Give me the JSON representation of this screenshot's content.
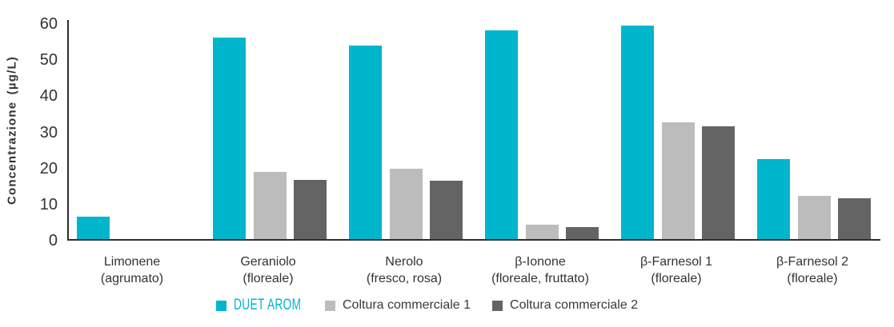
{
  "chart_data": {
    "type": "bar",
    "title": "",
    "xlabel": "",
    "ylabel": "Concentrazione (µg/L)",
    "ylim": [
      0,
      60
    ],
    "yticks": [
      0,
      10,
      20,
      30,
      40,
      50,
      60
    ],
    "grid": false,
    "legend_position": "bottom",
    "categories": [
      "Limonene",
      "Geraniolo",
      "Nerolo",
      "β-Ionone",
      "β-Farnesol 1",
      "β-Farnesol 2"
    ],
    "category_descriptors": [
      "(agrumato)",
      "(floreale)",
      "(fresco, rosa)",
      "(floreale, fruttato)",
      "(floreale)",
      "(floreale)"
    ],
    "series": [
      {
        "name": "DUET AROM",
        "color": "#00b6cd",
        "values": [
          6.3,
          55.8,
          53.6,
          57.8,
          59.2,
          22.2
        ]
      },
      {
        "name": "Coltura commerciale 1",
        "color": "#bcbcbc",
        "values": [
          0,
          18.6,
          19.4,
          4.0,
          32.4,
          12.0
        ]
      },
      {
        "name": "Coltura commerciale 2",
        "color": "#646464",
        "values": [
          0,
          16.4,
          16.2,
          3.4,
          31.2,
          11.2
        ]
      }
    ]
  },
  "colors": {
    "axis": "#2e2e2e",
    "text": "#333333",
    "background": "#ffffff",
    "accent": "#00b6cd"
  }
}
